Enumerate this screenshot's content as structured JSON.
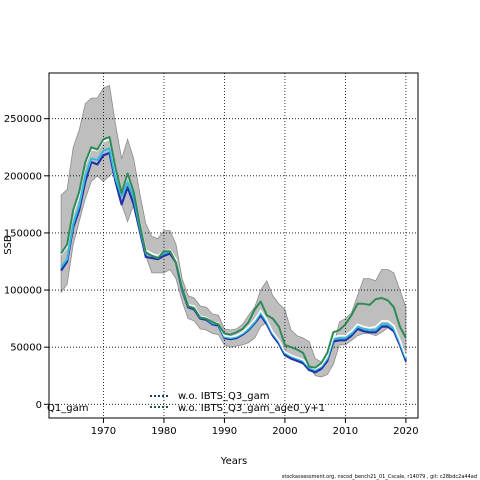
{
  "chart_data": {
    "type": "line",
    "xlabel": "Years",
    "ylabel": "SSB",
    "xlim": [
      1961,
      2022
    ],
    "ylim": [
      -12000,
      290000
    ],
    "x_ticks": [
      1970,
      1980,
      1990,
      2000,
      2010,
      2020
    ],
    "y_ticks": [
      0,
      50000,
      100000,
      150000,
      200000,
      250000
    ],
    "grid": true,
    "legend_position": "bottom-center",
    "left_fragment_label": "Q1_gam",
    "footer_text": "stockassessment.org, nscod_bench21_01_Cscale, r14079 , git: c28bdc2a44ad",
    "x": [
      1963,
      1964,
      1965,
      1966,
      1967,
      1968,
      1969,
      1970,
      1971,
      1972,
      1973,
      1974,
      1975,
      1976,
      1977,
      1978,
      1979,
      1980,
      1981,
      1982,
      1983,
      1984,
      1985,
      1986,
      1987,
      1988,
      1989,
      1990,
      1991,
      1992,
      1993,
      1994,
      1995,
      1996,
      1997,
      1998,
      1999,
      2000,
      2001,
      2002,
      2003,
      2004,
      2005,
      2006,
      2007,
      2008,
      2009,
      2010,
      2011,
      2012,
      2013,
      2014,
      2015,
      2016,
      2017,
      2018,
      2019,
      2020
    ],
    "band": {
      "low": [
        98000,
        105000,
        140000,
        160000,
        180000,
        195000,
        200000,
        195000,
        200000,
        205000,
        175000,
        160000,
        175000,
        160000,
        130000,
        115000,
        115000,
        115000,
        118000,
        110000,
        90000,
        75000,
        73000,
        66000,
        65000,
        62000,
        61000,
        52000,
        50000,
        51000,
        52000,
        54000,
        58000,
        68000,
        72000,
        63000,
        55000,
        48000,
        40000,
        38000,
        36000,
        33000,
        25000,
        24000,
        26000,
        35000,
        52000,
        52000,
        56000,
        60000,
        62000,
        62000,
        60000,
        63000,
        67000,
        64000,
        50000,
        36000
      ],
      "high": [
        183000,
        188000,
        225000,
        240000,
        263000,
        268000,
        268000,
        277000,
        279000,
        245000,
        215000,
        232000,
        215000,
        185000,
        158000,
        147000,
        145000,
        152000,
        152000,
        140000,
        110000,
        95000,
        93000,
        86000,
        85000,
        79000,
        78000,
        66000,
        65000,
        66000,
        70000,
        78000,
        85000,
        100000,
        108000,
        95000,
        88000,
        83000,
        65000,
        60000,
        58000,
        55000,
        40000,
        37000,
        40000,
        50000,
        72000,
        75000,
        80000,
        95000,
        110000,
        110000,
        108000,
        118000,
        118000,
        115000,
        100000,
        85000
      ]
    },
    "series": [
      {
        "name": "",
        "color": "#2233aa",
        "values": [
          117000,
          125000,
          155000,
          170000,
          195000,
          212000,
          210000,
          218000,
          220000,
          195000,
          175000,
          190000,
          175000,
          152000,
          129000,
          128000,
          127000,
          130000,
          132000,
          124000,
          100000,
          85000,
          83000,
          75000,
          74000,
          70000,
          69000,
          58000,
          57000,
          58000,
          61000,
          65000,
          71000,
          78000,
          70000,
          60000,
          53000,
          43000,
          40000,
          38000,
          36000,
          30000,
          28000,
          31000,
          38000,
          55000,
          56000,
          56000,
          60000,
          66000,
          64000,
          63000,
          63000,
          68000,
          68000,
          64000,
          52000,
          38000
        ]
      },
      {
        "name": "",
        "color": "#33bbdd",
        "values": [
          120000,
          127000,
          158000,
          174000,
          200000,
          215000,
          214000,
          222000,
          224000,
          198000,
          182000,
          194000,
          181000,
          155000,
          132000,
          130000,
          129000,
          132000,
          134000,
          126000,
          101000,
          86000,
          85000,
          76000,
          75000,
          71000,
          70000,
          59000,
          58000,
          59000,
          62000,
          66000,
          72000,
          80000,
          72000,
          62000,
          55000,
          45000,
          42000,
          40000,
          38000,
          32000,
          30000,
          33000,
          40000,
          57000,
          58000,
          58000,
          62000,
          68000,
          66000,
          65000,
          65000,
          70000,
          70000,
          66000,
          54000,
          40000
        ]
      },
      {
        "name": "w.o. IBTS_Q3_gam",
        "color": "#ffffff",
        "values": [
          131000,
          138000,
          167000,
          183000,
          210000,
          223000,
          222000,
          230000,
          232000,
          205000,
          185000,
          200000,
          187000,
          160000,
          135000,
          132000,
          130000,
          134000,
          135000,
          127000,
          103000,
          87000,
          86000,
          77000,
          76000,
          72000,
          71000,
          60000,
          59000,
          60000,
          63000,
          68000,
          74000,
          82000,
          74000,
          63000,
          56000,
          46000,
          43000,
          41000,
          39000,
          33000,
          31000,
          34000,
          42000,
          59000,
          60000,
          60000,
          64000,
          70000,
          68000,
          67000,
          68000,
          73000,
          73000,
          69000,
          56000,
          42000
        ]
      },
      {
        "name": "w.o. IBTS_Q3_gam_age0_y+1",
        "color": "#2e8b57",
        "values": [
          132000,
          140000,
          170000,
          186000,
          212000,
          225000,
          223000,
          232000,
          234000,
          207000,
          185000,
          202000,
          186000,
          158000,
          133000,
          130000,
          128000,
          134000,
          134000,
          124000,
          102000,
          86000,
          84000,
          76000,
          75000,
          72000,
          70000,
          62000,
          61000,
          63000,
          66000,
          72000,
          83000,
          90000,
          78000,
          75000,
          68000,
          52000,
          50000,
          48000,
          45000,
          33000,
          32000,
          36000,
          45000,
          63000,
          65000,
          70000,
          78000,
          88000,
          88000,
          87000,
          92000,
          93000,
          91000,
          85000,
          68000,
          58000
        ]
      }
    ]
  }
}
